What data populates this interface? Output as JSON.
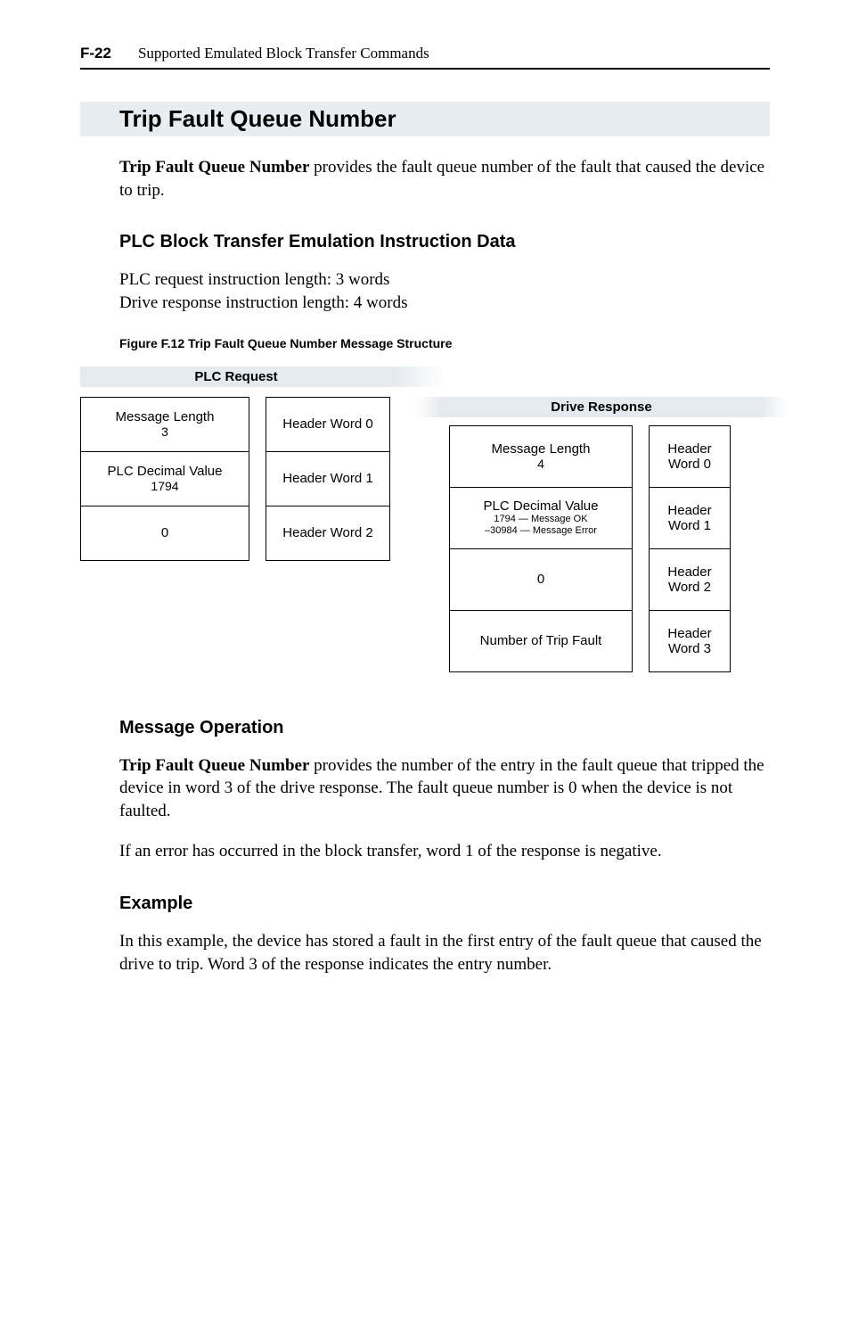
{
  "header": {
    "page_num": "F-22",
    "title": "Supported Emulated Block Transfer Commands"
  },
  "section_title": "Trip Fault Queue Number",
  "intro_html": "<b>Trip Fault Queue Number</b> provides the fault queue number of the fault that caused the device to trip.",
  "sub1_title": "PLC Block Transfer Emulation Instruction Data",
  "sub1_lines": [
    "PLC request instruction length: 3 words",
    "Drive response instruction length: 4 words"
  ],
  "figure_caption": "Figure F.12   Trip Fault Queue Number Message Structure",
  "diagram": {
    "plc_request_title": "PLC Request",
    "plc_col1": [
      {
        "main": "Message Length",
        "sub": "3"
      },
      {
        "main": "PLC Decimal Value",
        "sub": "1794"
      },
      {
        "main": "0",
        "sub": ""
      }
    ],
    "plc_col2": [
      "Header Word 0",
      "Header Word 1",
      "Header Word 2"
    ],
    "drive_response_title": "Drive Response",
    "drv_col1": [
      {
        "l1": "Message Length",
        "l2": "4",
        "l3": ""
      },
      {
        "l1": "PLC Decimal Value",
        "l2": "1794 — Message OK",
        "l3": "–30984 — Message Error"
      },
      {
        "l1": "0",
        "l2": "",
        "l3": ""
      },
      {
        "l1": "Number of Trip Fault",
        "l2": "",
        "l3": ""
      }
    ],
    "drv_col2": [
      {
        "a": "Header",
        "b": "Word 0"
      },
      {
        "a": "Header",
        "b": "Word 1"
      },
      {
        "a": "Header",
        "b": "Word 2"
      },
      {
        "a": "Header",
        "b": "Word 3"
      }
    ]
  },
  "msg_op_title": "Message Operation",
  "msg_op_html1": "<b>Trip Fault Queue Number</b> provides the number of the entry in the fault queue that tripped the device in word 3 of the drive response. The fault queue number is 0 when the device is not faulted.",
  "msg_op_html2": "If an error has occurred in the block transfer, word 1 of the response is negative.",
  "example_title": "Example",
  "example_text": "In this example, the device has stored a fault in the first entry of the fault queue that caused the drive to trip. Word 3 of the response indicates the entry number.",
  "colors": {
    "band_bg": "#e5eaef",
    "text": "#000000",
    "bg": "#ffffff"
  },
  "typography": {
    "body_family": "Times New Roman",
    "heading_family": "Arial",
    "body_size_pt": 14,
    "section_title_pt": 20,
    "subsection_title_pt": 15,
    "caption_pt": 11,
    "diagram_pt": 11
  }
}
